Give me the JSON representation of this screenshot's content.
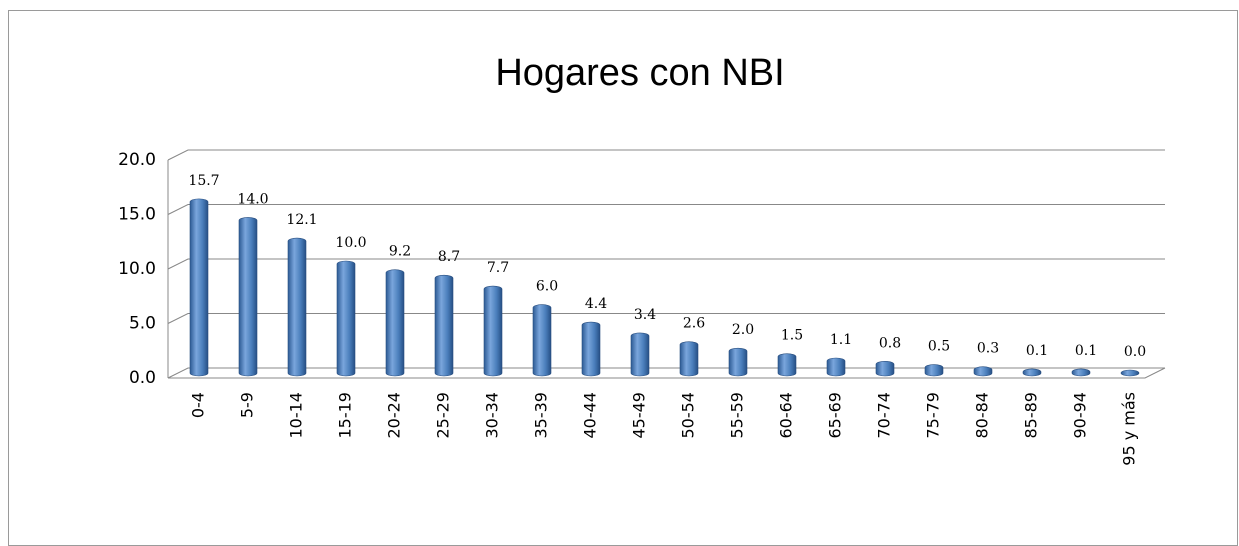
{
  "chart_data": {
    "type": "bar3d",
    "title": "Hogares con NBI",
    "categories": [
      "0-4",
      "5-9",
      "10-14",
      "15-19",
      "20-24",
      "25-29",
      "30-34",
      "35-39",
      "40-44",
      "45-49",
      "50-54",
      "55-59",
      "60-64",
      "65-69",
      "70-74",
      "75-79",
      "80-84",
      "85-89",
      "90-94",
      "95 y más"
    ],
    "values": [
      15.7,
      14.0,
      12.1,
      10.0,
      9.2,
      8.7,
      7.7,
      6.0,
      4.4,
      3.4,
      2.6,
      2.0,
      1.5,
      1.1,
      0.8,
      0.5,
      0.3,
      0.1,
      0.1,
      0.0
    ],
    "value_labels": [
      "15.7",
      "14.0",
      "12.1",
      "10.0",
      "9.2",
      "8.7",
      "7.7",
      "6.0",
      "4.4",
      "3.4",
      "2.6",
      "2.0",
      "1.5",
      "1.1",
      "0.8",
      "0.5",
      "0.3",
      "0.1",
      "0.1",
      "0.0"
    ],
    "color": "#4a7ebb",
    "ylim": [
      0,
      20
    ],
    "yticks": [
      {
        "value": 0,
        "label": "0.0"
      },
      {
        "value": 5,
        "label": "5.0"
      },
      {
        "value": 10,
        "label": "10.0"
      },
      {
        "value": 15,
        "label": "15.0"
      },
      {
        "value": 20,
        "label": "20.0"
      }
    ],
    "grid": true
  }
}
